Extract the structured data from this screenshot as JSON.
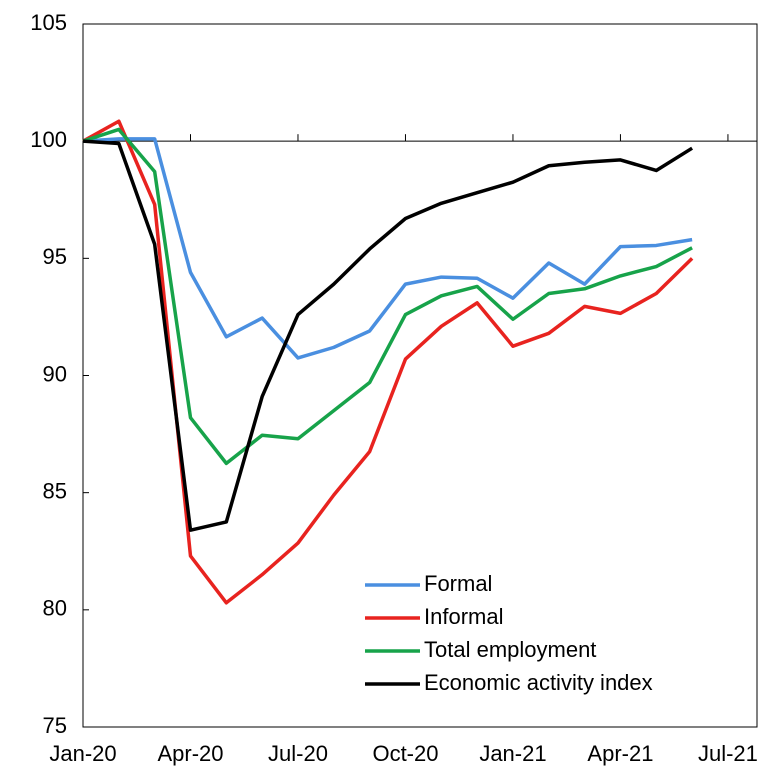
{
  "chart_data": {
    "type": "line",
    "categories": [
      "Jan-20",
      null,
      null,
      "Apr-20",
      null,
      null,
      "Jul-20",
      null,
      null,
      "Oct-20",
      null,
      null,
      "Jan-21",
      null,
      null,
      "Apr-21",
      null,
      null,
      "Jul-21"
    ],
    "series": [
      {
        "name": "Formal",
        "color": "#4a8fe0",
        "values": [
          100,
          100.1,
          100.1,
          94.4,
          91.65,
          92.45,
          90.75,
          91.2,
          91.9,
          93.9,
          94.2,
          94.15,
          93.3,
          94.8,
          93.9,
          95.5,
          95.55,
          95.8,
          null
        ]
      },
      {
        "name": "Informal",
        "color": "#e8231f",
        "values": [
          100,
          100.85,
          97.3,
          82.3,
          80.3,
          81.5,
          82.85,
          84.9,
          86.75,
          90.7,
          92.1,
          93.1,
          91.25,
          91.8,
          92.95,
          92.65,
          93.5,
          95.0,
          null
        ]
      },
      {
        "name": "Total employment",
        "color": "#17a34a",
        "values": [
          100,
          100.5,
          98.7,
          88.2,
          86.25,
          87.45,
          87.3,
          88.5,
          89.7,
          92.6,
          93.4,
          93.8,
          92.4,
          93.5,
          93.7,
          94.25,
          94.65,
          95.45,
          null
        ]
      },
      {
        "name": "Economic activity index",
        "color": "#000000",
        "values": [
          100,
          99.9,
          95.6,
          83.4,
          83.75,
          89.1,
          92.6,
          93.9,
          95.4,
          96.7,
          97.35,
          97.8,
          98.25,
          98.95,
          99.1,
          99.2,
          98.75,
          99.7,
          null
        ]
      }
    ],
    "ylim": [
      75,
      105
    ],
    "yticks": [
      75,
      80,
      85,
      90,
      95,
      100,
      105
    ],
    "reference_line": 100
  }
}
